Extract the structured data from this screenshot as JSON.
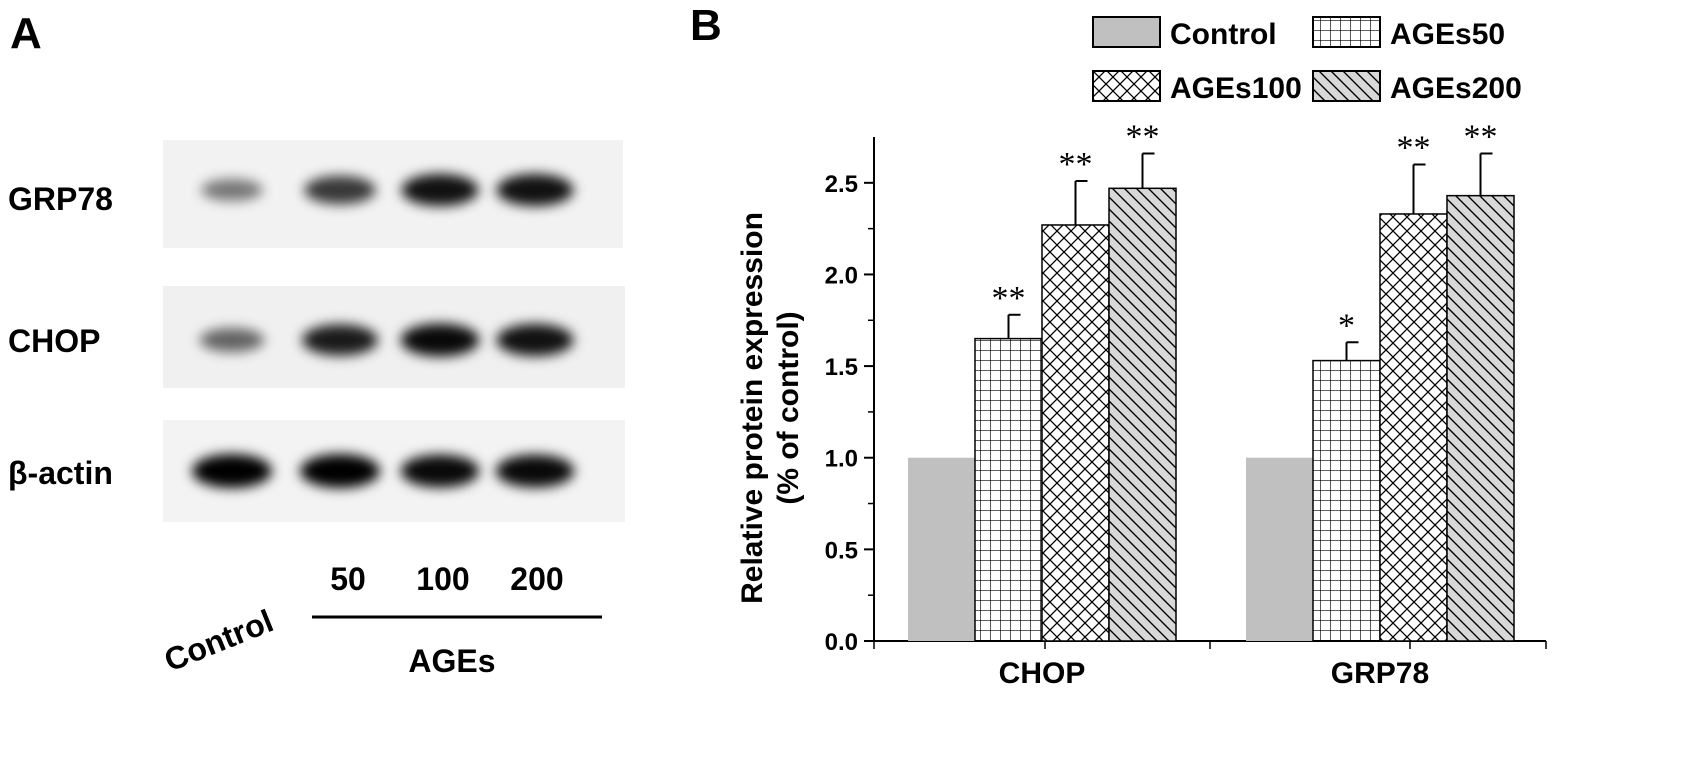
{
  "panel_a": {
    "letter": "A",
    "blots": [
      {
        "label": "GRP78",
        "bands": [
          0.35,
          0.7,
          0.9,
          0.9
        ]
      },
      {
        "label": "CHOP",
        "bands": [
          0.45,
          0.85,
          0.95,
          0.9
        ]
      },
      {
        "label": "β-actin",
        "bands": [
          1.0,
          1.0,
          0.95,
          0.95
        ]
      }
    ],
    "control_label": "Control",
    "lane_labels": [
      "50",
      "100",
      "200"
    ],
    "group_label": "AGEs"
  },
  "panel_b": {
    "letter": "B",
    "legend": [
      {
        "label": "Control",
        "pattern": "solid-gray"
      },
      {
        "label": "AGEs50",
        "pattern": "grid"
      },
      {
        "label": "AGEs100",
        "pattern": "crosshatch"
      },
      {
        "label": "AGEs200",
        "pattern": "diagonal"
      }
    ]
  },
  "chart_data": {
    "type": "bar",
    "title": "",
    "xlabel": "",
    "ylabel": "Relative protein expression (% of control)",
    "ylabel_lines": [
      "Relative protein expression",
      "(% of control)"
    ],
    "ylim": [
      0,
      2.75
    ],
    "yticks": [
      "0.0",
      "0.5",
      "1.0",
      "1.5",
      "2.0",
      "2.5"
    ],
    "categories": [
      "CHOP",
      "GRP78"
    ],
    "series": [
      {
        "name": "Control",
        "values": [
          1.0,
          1.0
        ],
        "errors": [
          0,
          0
        ],
        "significance": [
          "",
          ""
        ]
      },
      {
        "name": "AGEs50",
        "values": [
          1.65,
          1.53
        ],
        "errors": [
          0.13,
          0.1
        ],
        "significance": [
          "**",
          "*"
        ]
      },
      {
        "name": "AGEs100",
        "values": [
          2.27,
          2.33
        ],
        "errors": [
          0.24,
          0.27
        ],
        "significance": [
          "**",
          "**"
        ]
      },
      {
        "name": "AGEs200",
        "values": [
          2.47,
          2.43
        ],
        "errors": [
          0.19,
          0.23
        ],
        "significance": [
          "**",
          "**"
        ]
      }
    ],
    "grid": false,
    "legend_position": "top"
  }
}
